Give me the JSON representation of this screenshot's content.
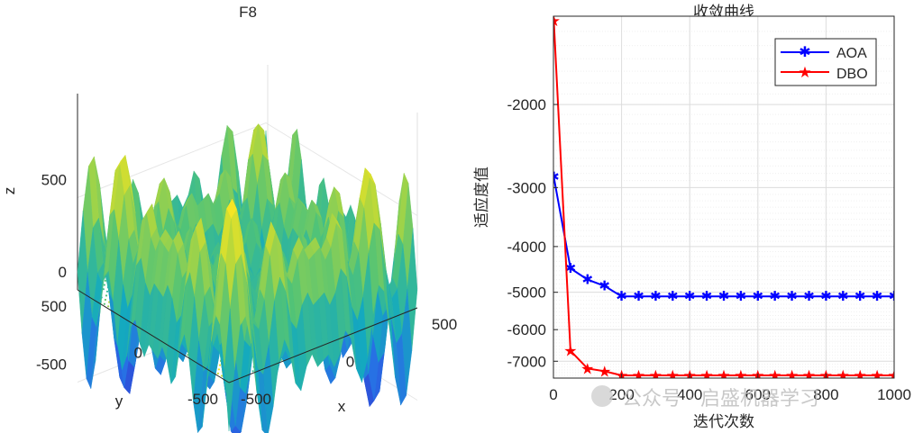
{
  "chart_data": [
    {
      "type": "surface3d",
      "title": "F8",
      "xlabel": "x",
      "ylabel": "y",
      "zlabel": "z",
      "xlim": [
        -500,
        500
      ],
      "ylim": [
        -500,
        500
      ],
      "zlim": [
        -800,
        800
      ],
      "xticks": [
        -500,
        0,
        500
      ],
      "yticks": [
        -500,
        0,
        500
      ],
      "zticks": [
        -500,
        0,
        500
      ],
      "function": "-x*sin(sqrt(|x|)) - y*sin(sqrt(|y|))",
      "contour_projection": true
    },
    {
      "type": "line",
      "title": "收敛曲线",
      "xlabel": "迭代次数",
      "ylabel": "适应度值",
      "xlim": [
        0,
        1000
      ],
      "ylim": [
        -7600,
        -1300
      ],
      "yscale": "symlog",
      "xticks": [
        0,
        200,
        400,
        600,
        800,
        1000
      ],
      "yticks": [
        -2000,
        -3000,
        -4000,
        -5000,
        -6000,
        -7000
      ],
      "grid": true,
      "legend_position": "top-right",
      "x": [
        1,
        50,
        100,
        150,
        200,
        250,
        300,
        350,
        400,
        450,
        500,
        550,
        600,
        650,
        700,
        750,
        800,
        850,
        900,
        950,
        1000
      ],
      "series": [
        {
          "name": "AOA",
          "color": "#0000ff",
          "marker": "asterisk",
          "values": [
            -2850,
            -4450,
            -4700,
            -4850,
            -5100,
            -5100,
            -5100,
            -5100,
            -5100,
            -5100,
            -5100,
            -5100,
            -5100,
            -5100,
            -5100,
            -5100,
            -5100,
            -5100,
            -5100,
            -5100,
            -5100
          ]
        },
        {
          "name": "DBO",
          "color": "#ff0000",
          "marker": "pentagram",
          "values": [
            -1330,
            -6650,
            -7250,
            -7350,
            -7500,
            -7500,
            -7500,
            -7500,
            -7500,
            -7500,
            -7500,
            -7500,
            -7500,
            -7500,
            -7500,
            -7500,
            -7500,
            -7500,
            -7500,
            -7500,
            -7500
          ]
        }
      ]
    }
  ],
  "watermark": {
    "text": "公众号 · 启盛机器学习"
  }
}
